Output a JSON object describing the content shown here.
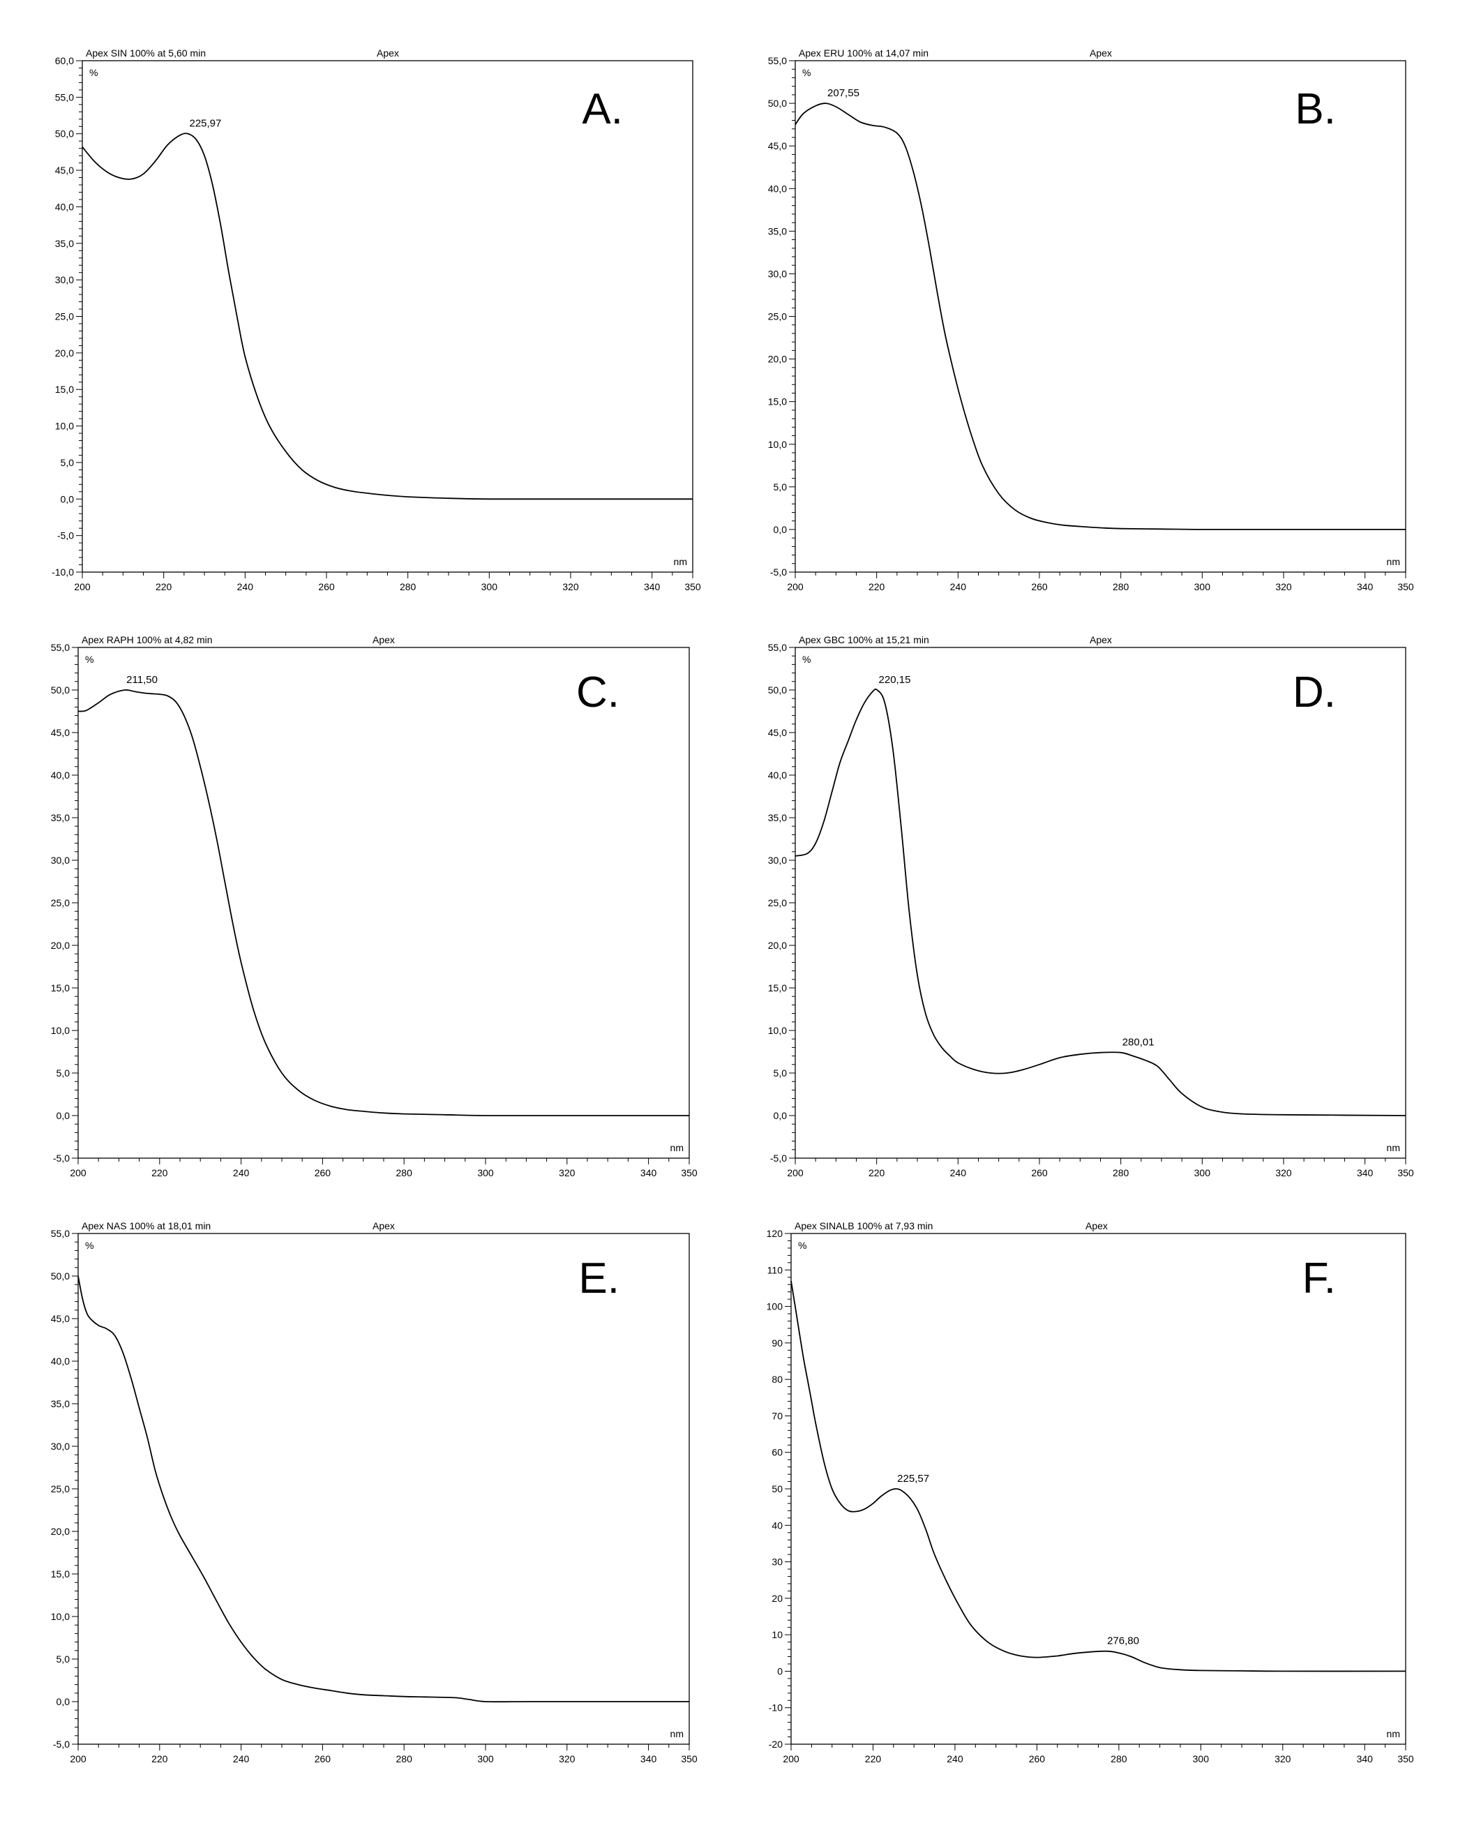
{
  "chart_data": [
    {
      "type": "line",
      "panel_label": "A.",
      "header_left": "Apex SIN 100% at 5,60 min",
      "header_center": "Apex",
      "ylabel": "%",
      "xlabel": "nm",
      "xlim": [
        200,
        350
      ],
      "ylim": [
        -10,
        60
      ],
      "xticks": [
        "200",
        "220",
        "240",
        "260",
        "280",
        "300",
        "320",
        "340",
        "350"
      ],
      "yticks": [
        "60,0",
        "55,0",
        "50,0",
        "45,0",
        "40,0",
        "35,0",
        "30,0",
        "25,0",
        "20,0",
        "15,0",
        "10,0",
        "5,0",
        "0,0",
        "-5,0",
        "-10,0"
      ],
      "annotations": [
        {
          "text": "225,97",
          "x": 225.97,
          "y": 50
        }
      ],
      "series": [
        {
          "x": [
            200,
            203,
            206,
            209,
            212,
            215,
            218,
            221,
            224,
            226,
            228,
            230,
            232,
            234,
            236,
            238,
            240,
            243,
            246,
            250,
            254,
            258,
            262,
            266,
            270,
            275,
            280,
            290,
            300,
            320,
            350
          ],
          "y": [
            48.2,
            46.2,
            44.8,
            44.0,
            43.8,
            44.5,
            46.3,
            48.5,
            49.8,
            50.0,
            49.2,
            47.0,
            43.0,
            37.5,
            31.0,
            25.0,
            19.5,
            14.0,
            10.0,
            6.5,
            4.0,
            2.5,
            1.6,
            1.1,
            0.8,
            0.5,
            0.3,
            0.1,
            0.0,
            0.0,
            0.0
          ]
        }
      ]
    },
    {
      "type": "line",
      "panel_label": "B.",
      "header_left": "Apex ERU 100% at 14,07 min",
      "header_center": "Apex",
      "ylabel": "%",
      "xlabel": "nm",
      "xlim": [
        200,
        350
      ],
      "ylim": [
        -5,
        55
      ],
      "xticks": [
        "200",
        "220",
        "240",
        "260",
        "280",
        "300",
        "320",
        "340",
        "350"
      ],
      "yticks": [
        "55,0",
        "50,0",
        "45,0",
        "40,0",
        "35,0",
        "30,0",
        "25,0",
        "20,0",
        "15,0",
        "10,0",
        "5,0",
        "0,0",
        "-5,0"
      ],
      "annotations": [
        {
          "text": "207,55",
          "x": 207.55,
          "y": 50
        }
      ],
      "series": [
        {
          "x": [
            200,
            202,
            205,
            207.5,
            210,
            213,
            216,
            219,
            222,
            225,
            227,
            229,
            231,
            233,
            235,
            237,
            240,
            243,
            246,
            250,
            254,
            258,
            262,
            266,
            270,
            275,
            280,
            290,
            300,
            320,
            350
          ],
          "y": [
            47.5,
            48.8,
            49.7,
            50.0,
            49.6,
            48.7,
            47.8,
            47.4,
            47.2,
            46.5,
            45.0,
            42.0,
            38.0,
            33.0,
            27.5,
            22.5,
            16.5,
            11.5,
            7.5,
            4.2,
            2.3,
            1.3,
            0.8,
            0.5,
            0.35,
            0.2,
            0.1,
            0.05,
            0.0,
            0.0,
            0.0
          ]
        }
      ]
    },
    {
      "type": "line",
      "panel_label": "C.",
      "header_left": "Apex RAPH 100% at 4,82 min",
      "header_center": "Apex",
      "ylabel": "%",
      "xlabel": "nm",
      "xlim": [
        200,
        350
      ],
      "ylim": [
        -5,
        55
      ],
      "xticks": [
        "200",
        "220",
        "240",
        "260",
        "280",
        "300",
        "320",
        "340",
        "350"
      ],
      "yticks": [
        "55,0",
        "50,0",
        "45,0",
        "40,0",
        "35,0",
        "30,0",
        "25,0",
        "20,0",
        "15,0",
        "10,0",
        "5,0",
        "0,0",
        "-5,0"
      ],
      "annotations": [
        {
          "text": "211,50",
          "x": 211.5,
          "y": 50
        }
      ],
      "series": [
        {
          "x": [
            200,
            202,
            205,
            208,
            211.5,
            214,
            217,
            220,
            222,
            224,
            226,
            228,
            230,
            232,
            234,
            236,
            238,
            240,
            243,
            246,
            250,
            254,
            258,
            262,
            266,
            270,
            275,
            280,
            290,
            300,
            320,
            350
          ],
          "y": [
            47.5,
            47.6,
            48.5,
            49.5,
            50.0,
            49.8,
            49.6,
            49.5,
            49.3,
            48.6,
            47.0,
            44.5,
            41.0,
            37.0,
            32.5,
            27.5,
            22.5,
            18.0,
            12.5,
            8.5,
            5.0,
            3.0,
            1.8,
            1.1,
            0.7,
            0.5,
            0.3,
            0.2,
            0.1,
            0.0,
            0.0,
            0.0
          ]
        }
      ]
    },
    {
      "type": "line",
      "panel_label": "D.",
      "header_left": "Apex GBC 100% at 15,21 min",
      "header_center": "Apex",
      "ylabel": "%",
      "xlabel": "nm",
      "xlim": [
        200,
        350
      ],
      "ylim": [
        -5,
        55
      ],
      "xticks": [
        "200",
        "220",
        "240",
        "260",
        "280",
        "300",
        "320",
        "340",
        "350"
      ],
      "yticks": [
        "55,0",
        "50,0",
        "45,0",
        "40,0",
        "35,0",
        "30,0",
        "25,0",
        "20,0",
        "15,0",
        "10,0",
        "5,0",
        "0,0",
        "-5,0"
      ],
      "annotations": [
        {
          "text": "220,15",
          "x": 220.15,
          "y": 50
        },
        {
          "text": "280,01",
          "x": 280.01,
          "y": 7.4
        }
      ],
      "series": [
        {
          "x": [
            200,
            203,
            205,
            207,
            209,
            211,
            213,
            215,
            217,
            219,
            220.15,
            222,
            224,
            226,
            228,
            230,
            232,
            234,
            236,
            238,
            240,
            244,
            248,
            252,
            256,
            260,
            265,
            270,
            275,
            280,
            283,
            286,
            289,
            292,
            295,
            300,
            305,
            310,
            320,
            350
          ],
          "y": [
            30.5,
            30.8,
            32.0,
            34.5,
            38.0,
            41.5,
            44.0,
            46.5,
            48.5,
            49.8,
            50.0,
            48.5,
            43.0,
            34.0,
            24.0,
            16.5,
            12.0,
            9.5,
            8.0,
            7.0,
            6.2,
            5.4,
            5.0,
            5.0,
            5.4,
            6.0,
            6.8,
            7.2,
            7.4,
            7.4,
            7.0,
            6.5,
            5.8,
            4.2,
            2.6,
            1.0,
            0.4,
            0.2,
            0.1,
            0.0
          ]
        }
      ]
    },
    {
      "type": "line",
      "panel_label": "E.",
      "header_left": "Apex NAS 100% at 18,01 min",
      "header_center": "Apex",
      "ylabel": "%",
      "xlabel": "nm",
      "xlim": [
        200,
        350
      ],
      "ylim": [
        -5,
        55
      ],
      "xticks": [
        "200",
        "220",
        "240",
        "260",
        "280",
        "300",
        "320",
        "340",
        "350"
      ],
      "yticks": [
        "55,0",
        "50,0",
        "45,0",
        "40,0",
        "35,0",
        "30,0",
        "25,0",
        "20,0",
        "15,0",
        "10,0",
        "5,0",
        "0,0",
        "-5,0"
      ],
      "annotations": [],
      "series": [
        {
          "x": [
            200,
            201,
            202,
            203,
            205,
            207,
            209,
            211,
            213,
            215,
            217,
            219,
            221,
            223,
            225,
            228,
            231,
            234,
            237,
            240,
            243,
            246,
            250,
            254,
            258,
            262,
            266,
            270,
            275,
            280,
            285,
            290,
            293,
            296,
            300,
            310,
            320,
            350
          ],
          "y": [
            50.0,
            47.5,
            45.8,
            45.0,
            44.2,
            43.8,
            43.0,
            41.0,
            38.0,
            34.5,
            31.0,
            27.0,
            24.0,
            21.5,
            19.5,
            17.0,
            14.5,
            11.8,
            9.2,
            7.0,
            5.2,
            3.8,
            2.6,
            2.0,
            1.6,
            1.3,
            1.0,
            0.8,
            0.7,
            0.6,
            0.55,
            0.5,
            0.45,
            0.25,
            0.0,
            0.0,
            0.0,
            0.0
          ]
        }
      ]
    },
    {
      "type": "line",
      "panel_label": "F.",
      "header_left": "Apex SINALB 100% at 7,93 min",
      "header_center": "Apex",
      "ylabel": "%",
      "xlabel": "nm",
      "xlim": [
        200,
        350
      ],
      "ylim": [
        -20,
        120
      ],
      "xticks": [
        "200",
        "220",
        "240",
        "260",
        "280",
        "300",
        "320",
        "340",
        "350"
      ],
      "yticks": [
        "120",
        "110",
        "100",
        "90",
        "80",
        "70",
        "60",
        "50",
        "40",
        "30",
        "20",
        "10",
        "0",
        "-10",
        "-20"
      ],
      "annotations": [
        {
          "text": "225,57",
          "x": 225.57,
          "y": 50
        },
        {
          "text": "276,80",
          "x": 276.8,
          "y": 5.5
        }
      ],
      "series": [
        {
          "x": [
            200,
            201,
            202,
            203,
            204,
            205,
            206,
            208,
            210,
            212,
            214,
            216,
            218,
            220,
            222,
            224,
            225.57,
            227,
            229,
            231,
            233,
            235,
            238,
            241,
            244,
            248,
            252,
            256,
            260,
            265,
            270,
            276.8,
            280,
            283,
            286,
            290,
            295,
            300,
            310,
            320,
            350
          ],
          "y": [
            107,
            100,
            93,
            86,
            80,
            74,
            68,
            57.5,
            50,
            46,
            44,
            43.8,
            44.5,
            46,
            48,
            49.5,
            50,
            49.5,
            47.5,
            44.0,
            38.5,
            32.0,
            24.5,
            18.0,
            12.5,
            8.0,
            5.5,
            4.2,
            3.8,
            4.2,
            5.0,
            5.5,
            5.0,
            4.0,
            2.5,
            1.0,
            0.4,
            0.2,
            0.1,
            0.0,
            0.0
          ]
        }
      ]
    }
  ]
}
